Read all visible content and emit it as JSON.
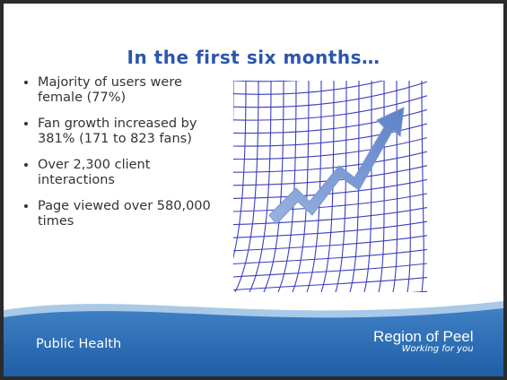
{
  "slide": {
    "title": "In the first six months…",
    "bullets": [
      "Majority of users were female (77%)",
      "Fan growth increased by 381% (171 to 823 fans)",
      "Over 2,300 client interactions",
      "Page viewed over 580,000 times"
    ],
    "footer": "Public Health",
    "logo": {
      "name": "Region of Peel",
      "tagline": "Working for you"
    }
  }
}
